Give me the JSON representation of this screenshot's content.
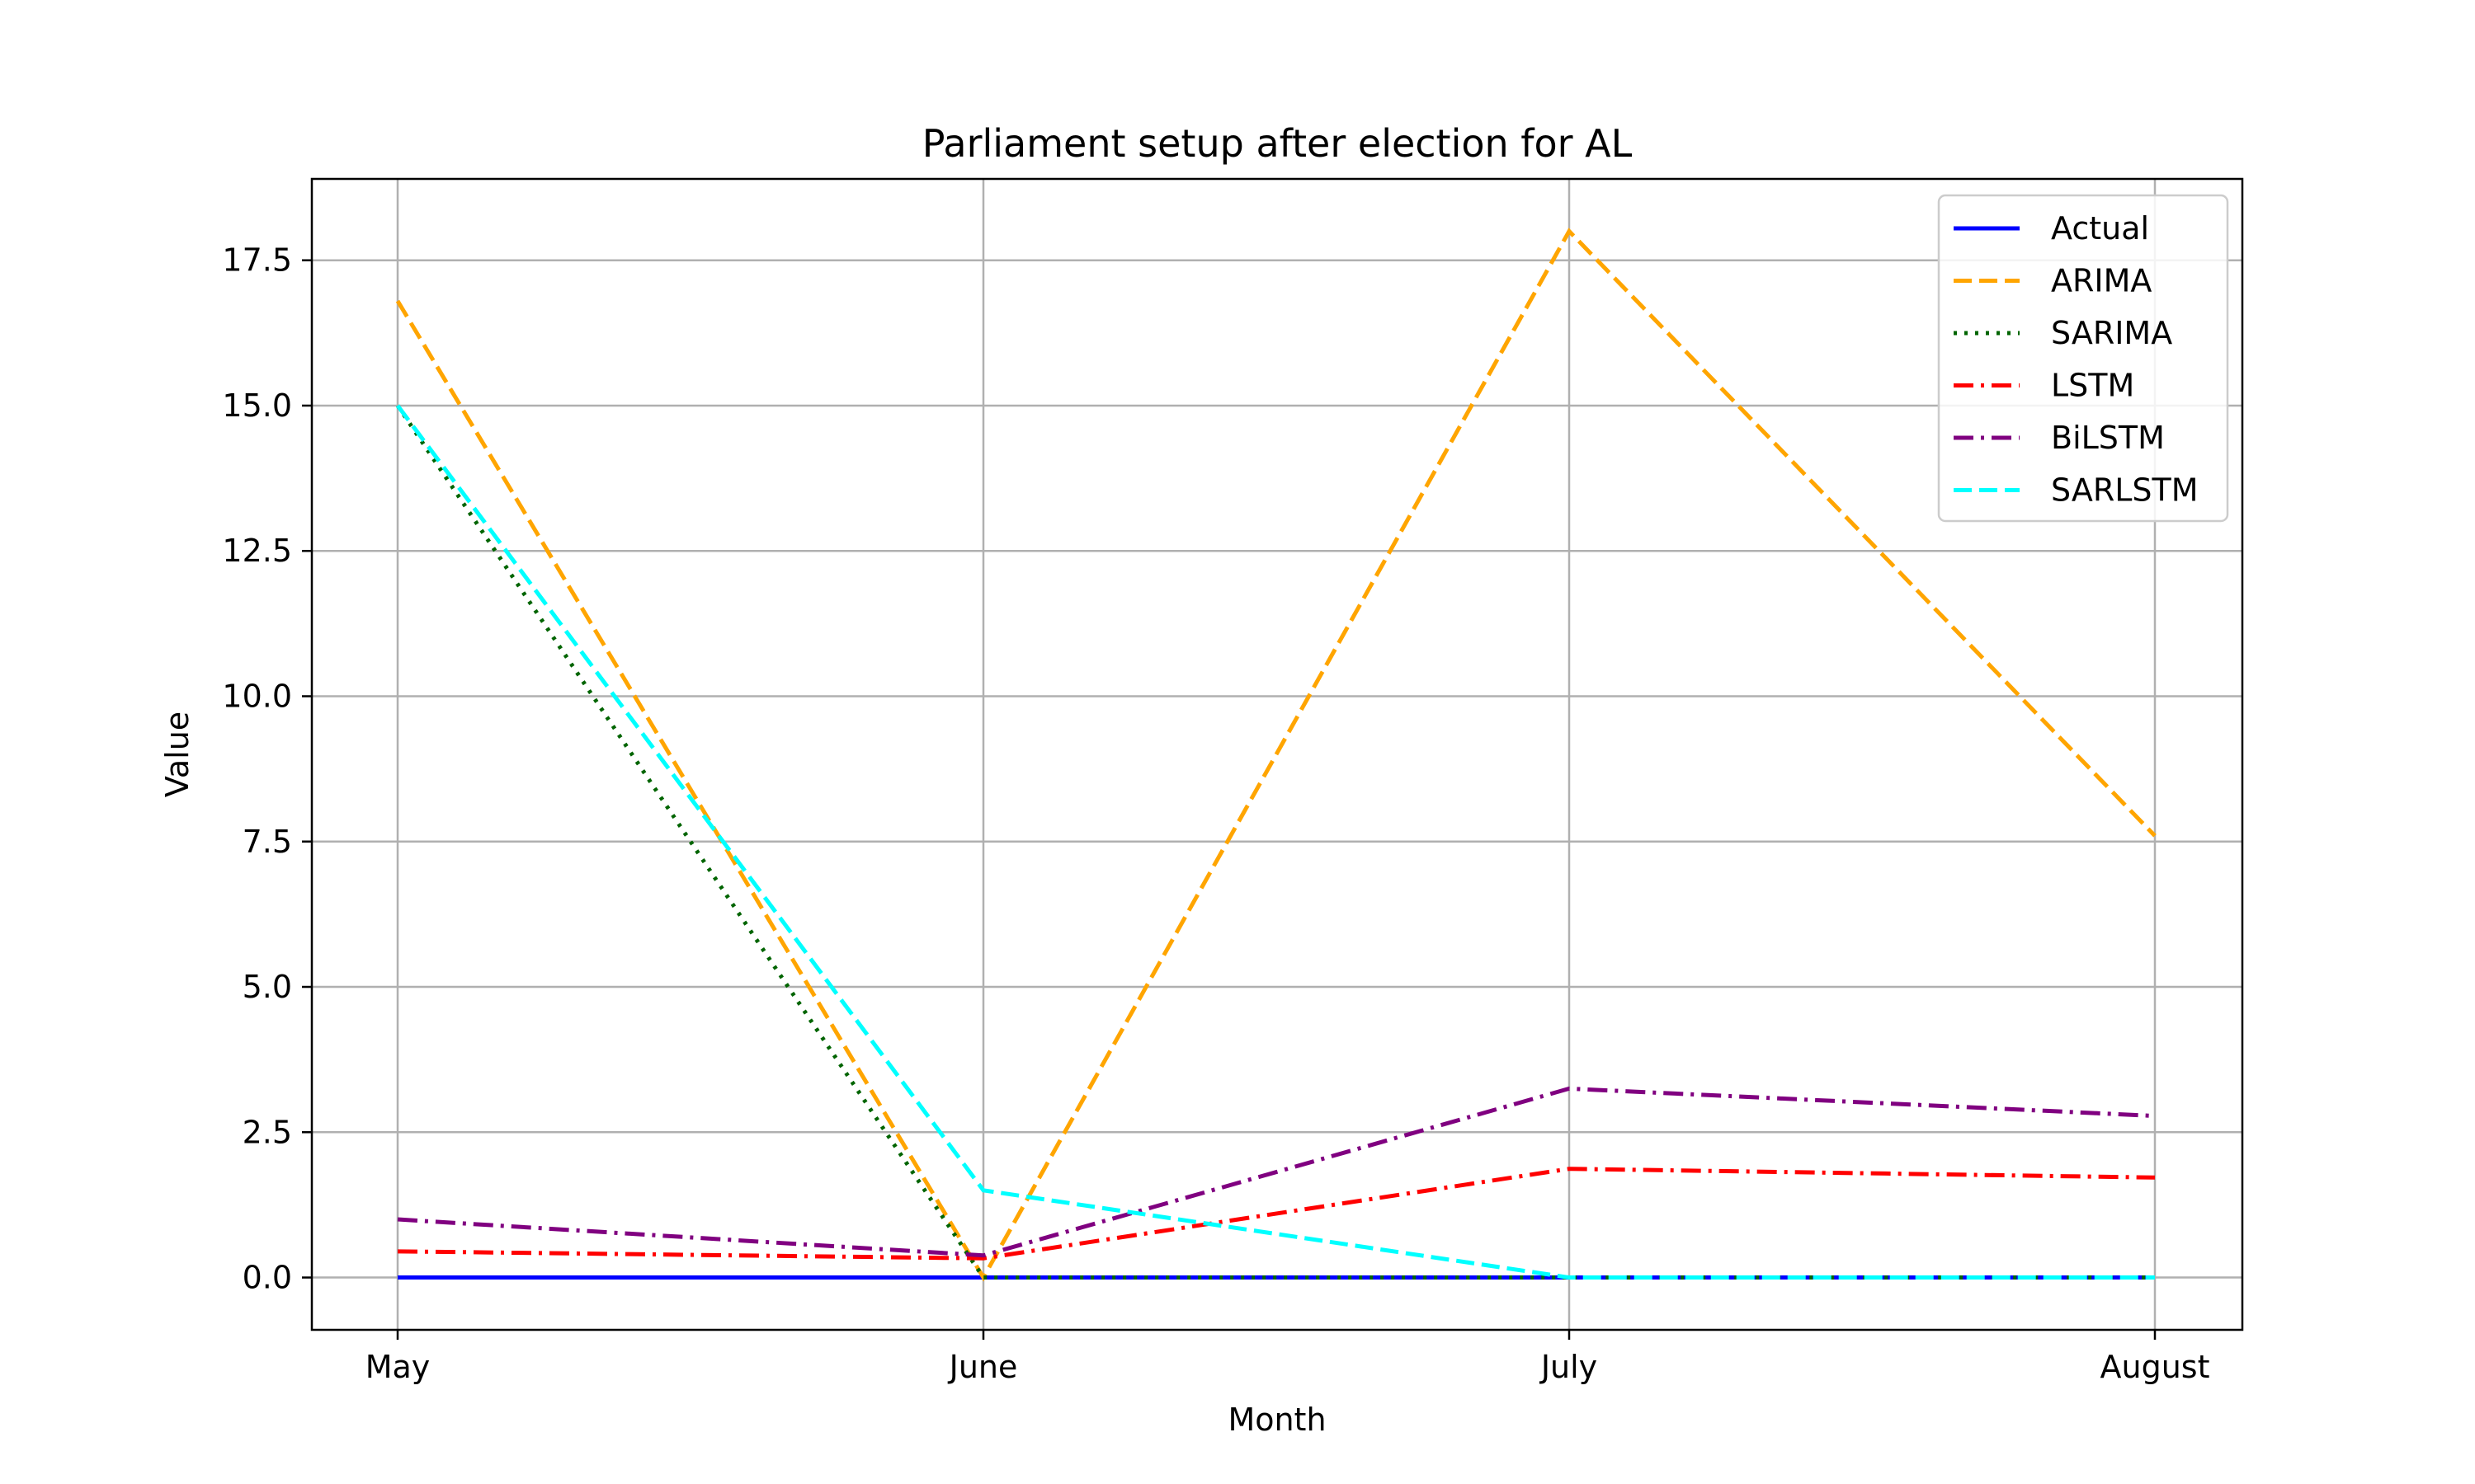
{
  "chart_data": {
    "type": "line",
    "title": "Parliament setup after election for AL",
    "xlabel": "Month",
    "ylabel": "Value",
    "categories": [
      "May",
      "June",
      "July",
      "August"
    ],
    "ylim": [
      -0.9,
      18.9
    ],
    "yticks": [
      0.0,
      2.5,
      5.0,
      7.5,
      10.0,
      12.5,
      15.0,
      17.5
    ],
    "ytick_labels": [
      "0.0",
      "2.5",
      "5.0",
      "7.5",
      "10.0",
      "12.5",
      "15.0",
      "17.5"
    ],
    "grid": true,
    "legend_position": "top-right",
    "series": [
      {
        "name": "Actual",
        "values": [
          0,
          0,
          0,
          0
        ],
        "color": "#0000ff",
        "style": "solid"
      },
      {
        "name": "ARIMA",
        "values": [
          16.8,
          0.0,
          18.0,
          7.6
        ],
        "color": "#ffa500",
        "style": "dashed"
      },
      {
        "name": "SARIMA",
        "values": [
          15.0,
          0.0,
          0.0,
          0.0
        ],
        "color": "#006400",
        "style": "dotted"
      },
      {
        "name": "LSTM",
        "values": [
          0.45,
          0.33,
          1.87,
          1.72
        ],
        "color": "#ff0000",
        "style": "dashdot"
      },
      {
        "name": "BiLSTM",
        "values": [
          1.0,
          0.38,
          3.25,
          2.78
        ],
        "color": "#800080",
        "style": "dashdot"
      },
      {
        "name": "SARLSTM",
        "values": [
          15.0,
          1.5,
          0.0,
          0.0
        ],
        "color": "#00ffff",
        "style": "dashed"
      }
    ]
  }
}
